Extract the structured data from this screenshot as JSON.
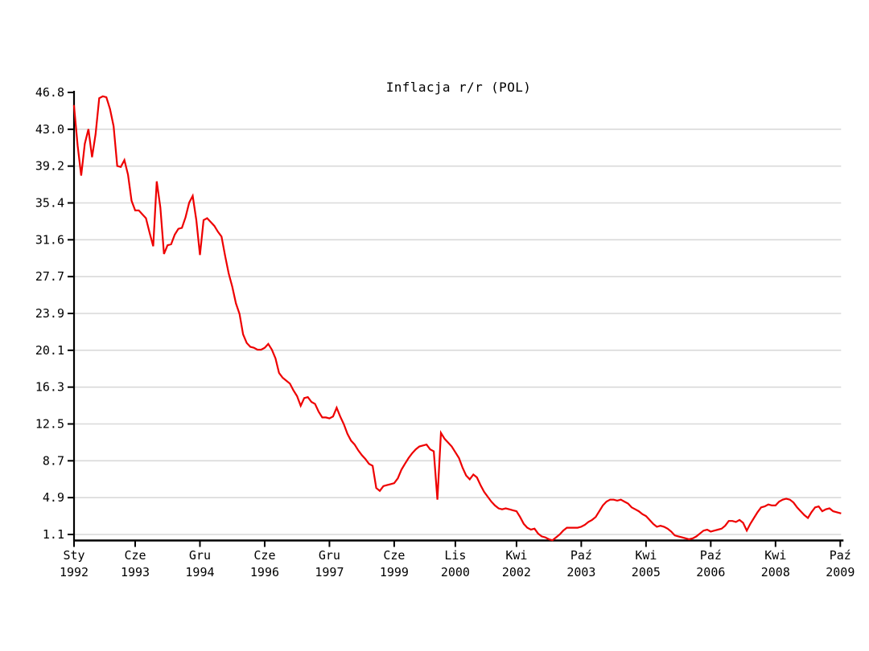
{
  "chart_data": {
    "type": "line",
    "title": "Inflacja r/r (POL)",
    "grid": true,
    "legend_position": "none",
    "ylim": [
      1.1,
      46.8
    ],
    "y_tick_labels": [
      "46.8",
      "43.0",
      "39.2",
      "35.4",
      "31.6",
      "27.7",
      "23.9",
      "20.1",
      "16.3",
      "12.5",
      "8.7",
      "4.9",
      "1.1"
    ],
    "x_ticks": [
      {
        "month": "Sty",
        "year": "1992",
        "month_index": 0
      },
      {
        "month": "Cze",
        "year": "1993",
        "month_index": 17
      },
      {
        "month": "Gru",
        "year": "1994",
        "month_index": 35
      },
      {
        "month": "Cze",
        "year": "1996",
        "month_index": 53
      },
      {
        "month": "Gru",
        "year": "1997",
        "month_index": 71
      },
      {
        "month": "Cze",
        "year": "1999",
        "month_index": 89
      },
      {
        "month": "Lis",
        "year": "2000",
        "month_index": 106
      },
      {
        "month": "Kwi",
        "year": "2002",
        "month_index": 123
      },
      {
        "month": "Paź",
        "year": "2003",
        "month_index": 141
      },
      {
        "month": "Kwi",
        "year": "2005",
        "month_index": 159
      },
      {
        "month": "Paź",
        "year": "2006",
        "month_index": 177
      },
      {
        "month": "Kwi",
        "year": "2008",
        "month_index": 195
      },
      {
        "month": "Paź",
        "year": "2009",
        "month_index": 213
      }
    ],
    "series": [
      {
        "name": "Inflacja r/r (POL)",
        "unit": "%",
        "color": "#ee0000",
        "start_month": "1992-01",
        "end_month": "2009-10",
        "values_by_year": [
          {
            "year": 1992,
            "values": [
              45.4,
              41.3,
              38.2,
              41.5,
              43.0,
              40.1,
              42.5,
              46.2,
              46.4,
              46.3,
              45.1,
              43.3
            ]
          },
          {
            "year": 1993,
            "values": [
              39.2,
              39.1,
              39.8,
              38.3,
              35.6,
              34.6,
              34.6,
              34.2,
              33.8,
              32.3,
              30.9,
              37.6
            ]
          },
          {
            "year": 1994,
            "values": [
              34.9,
              30.1,
              31.0,
              31.1,
              32.1,
              32.7,
              32.8,
              33.9,
              35.4,
              36.1,
              33.6,
              30.0
            ]
          },
          {
            "year": 1995,
            "values": [
              33.6,
              33.8,
              33.4,
              33.0,
              32.4,
              31.9,
              29.9,
              28.1,
              26.7,
              25.0,
              23.9,
              21.8
            ]
          },
          {
            "year": 1996,
            "values": [
              20.9,
              20.5,
              20.4,
              20.2,
              20.2,
              20.4,
              20.8,
              20.2,
              19.3,
              17.8,
              17.3,
              17.0
            ]
          },
          {
            "year": 1997,
            "values": [
              16.7,
              16.0,
              15.4,
              14.4,
              15.2,
              15.3,
              14.8,
              14.6,
              13.8,
              13.2,
              13.2,
              13.1
            ]
          },
          {
            "year": 1998,
            "values": [
              13.3,
              14.2,
              13.3,
              12.5,
              11.5,
              10.8,
              10.4,
              9.8,
              9.3,
              8.9,
              8.4,
              8.2
            ]
          },
          {
            "year": 1999,
            "values": [
              5.9,
              5.6,
              6.1,
              6.2,
              6.3,
              6.4,
              6.9,
              7.8,
              8.4,
              9.0,
              9.5,
              9.9
            ]
          },
          {
            "year": 2000,
            "values": [
              10.2,
              10.3,
              10.4,
              9.9,
              9.7,
              4.7,
              11.6,
              11.0,
              10.6,
              10.2,
              9.6,
              9.0
            ]
          },
          {
            "year": 2001,
            "values": [
              8.0,
              7.2,
              6.8,
              7.3,
              7.0,
              6.2,
              5.5,
              5.0,
              4.5,
              4.1,
              3.8,
              3.7
            ]
          },
          {
            "year": 2002,
            "values": [
              3.8,
              3.7,
              3.6,
              3.5,
              2.9,
              2.2,
              1.8,
              1.6,
              1.7,
              1.2,
              0.9,
              0.8
            ]
          },
          {
            "year": 2003,
            "values": [
              0.6,
              0.5,
              0.8,
              1.1,
              1.5,
              1.8,
              1.8,
              1.8,
              1.8,
              1.9,
              2.1,
              2.4
            ]
          },
          {
            "year": 2004,
            "values": [
              2.6,
              2.9,
              3.5,
              4.1,
              4.5,
              4.7,
              4.7,
              4.6,
              4.7,
              4.5,
              4.3,
              3.9
            ]
          },
          {
            "year": 2005,
            "values": [
              3.7,
              3.5,
              3.2,
              3.0,
              2.6,
              2.2,
              1.9,
              2.0,
              1.9,
              1.7,
              1.4,
              1.0
            ]
          },
          {
            "year": 2006,
            "values": [
              0.9,
              0.8,
              0.7,
              0.6,
              0.7,
              0.9,
              1.2,
              1.5,
              1.6,
              1.4,
              1.5,
              1.6
            ]
          },
          {
            "year": 2007,
            "values": [
              1.7,
              2.0,
              2.5,
              2.5,
              2.4,
              2.6,
              2.3,
              1.5,
              2.2,
              2.8,
              3.4,
              3.9
            ]
          },
          {
            "year": 2008,
            "values": [
              4.0,
              4.2,
              4.1,
              4.1,
              4.5,
              4.7,
              4.8,
              4.7,
              4.4,
              3.9,
              3.5,
              3.1
            ]
          },
          {
            "year": 2009,
            "values": [
              2.8,
              3.4,
              3.9,
              4.0,
              3.5,
              3.7,
              3.8,
              3.5,
              3.4,
              3.3
            ]
          }
        ]
      }
    ],
    "colors": {
      "line": "#ee0000",
      "grid": "#d9d9d9",
      "axis": "#000000",
      "text": "#000000",
      "background": "#ffffff"
    }
  }
}
